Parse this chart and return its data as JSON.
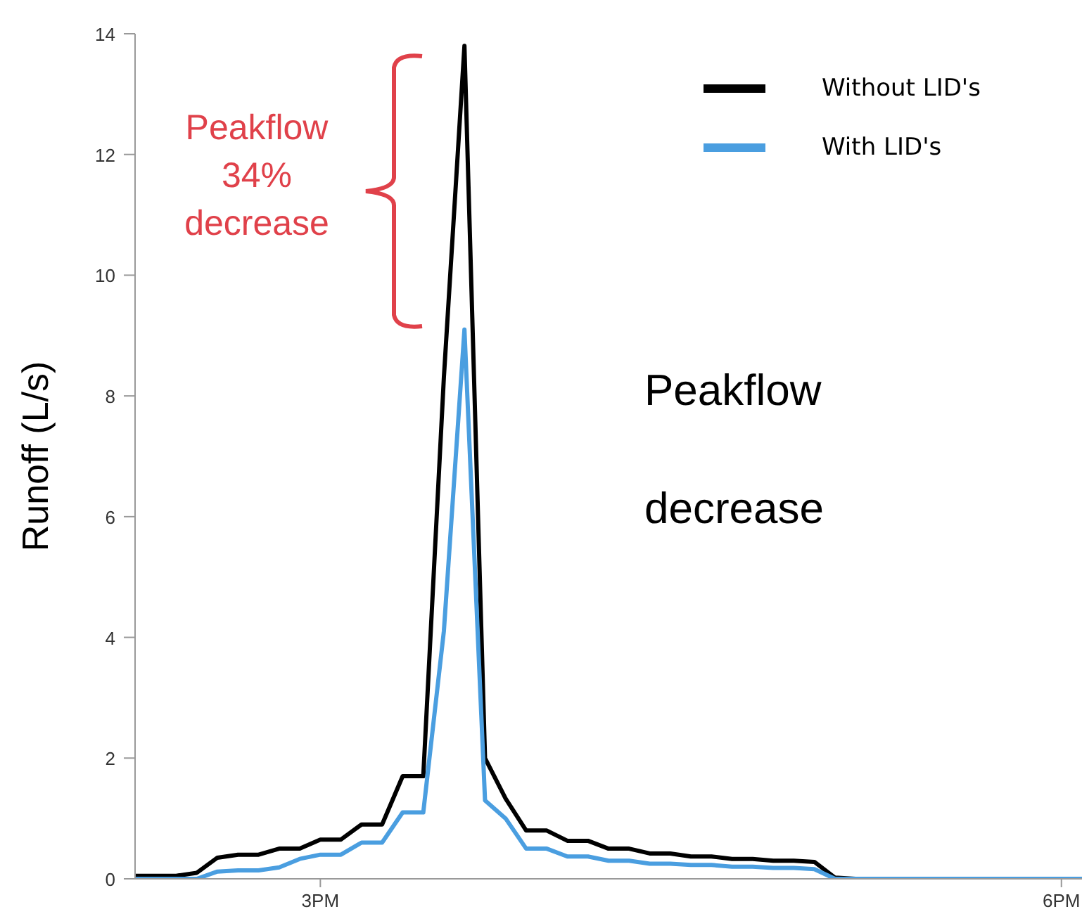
{
  "chart_data": {
    "type": "line",
    "ylabel": "Runoff (L/s)",
    "categories": [
      null,
      null,
      null,
      null,
      null,
      null,
      null,
      null,
      null,
      "3PM",
      null,
      null,
      null,
      null,
      null,
      null,
      null,
      null,
      null,
      null,
      null,
      null,
      null,
      null,
      null,
      null,
      null,
      null,
      null,
      null,
      null,
      null,
      null,
      null,
      null,
      null,
      null,
      null,
      null,
      null,
      null,
      null,
      null,
      null,
      null,
      "6PM",
      null
    ],
    "series": [
      {
        "name": "Without LID's",
        "color": "#000000",
        "values": [
          0.05,
          0.05,
          0.05,
          0.1,
          0.35,
          0.4,
          0.4,
          0.5,
          0.5,
          0.65,
          0.65,
          0.9,
          0.9,
          1.7,
          1.7,
          8.3,
          13.8,
          2.0,
          1.33,
          0.8,
          0.8,
          0.63,
          0.63,
          0.5,
          0.5,
          0.42,
          0.42,
          0.37,
          0.37,
          0.33,
          0.33,
          0.3,
          0.3,
          0.28,
          0.02,
          0,
          0,
          0,
          0,
          0,
          0,
          0,
          0,
          0,
          0,
          0,
          0
        ]
      },
      {
        "name": "With LID's",
        "color": "#4a9ee0",
        "values": [
          0,
          0,
          0,
          0,
          0.12,
          0.14,
          0.14,
          0.19,
          0.33,
          0.4,
          0.4,
          0.6,
          0.6,
          1.1,
          1.1,
          4.1,
          9.1,
          1.3,
          1.0,
          0.5,
          0.5,
          0.37,
          0.37,
          0.3,
          0.3,
          0.25,
          0.25,
          0.23,
          0.23,
          0.2,
          0.2,
          0.18,
          0.18,
          0.16,
          0,
          0,
          0,
          0,
          0,
          0,
          0,
          0,
          0,
          0,
          0,
          0,
          0
        ]
      }
    ],
    "ylim": [
      0,
      14
    ],
    "yticks": [
      0,
      2,
      4,
      6,
      8,
      10,
      12,
      14
    ],
    "legend": "top right",
    "grid": false,
    "marker": "none",
    "line_style": "solid",
    "annotations": [
      "Peakflow 34% decrease",
      "Peakflow decrease"
    ]
  }
}
